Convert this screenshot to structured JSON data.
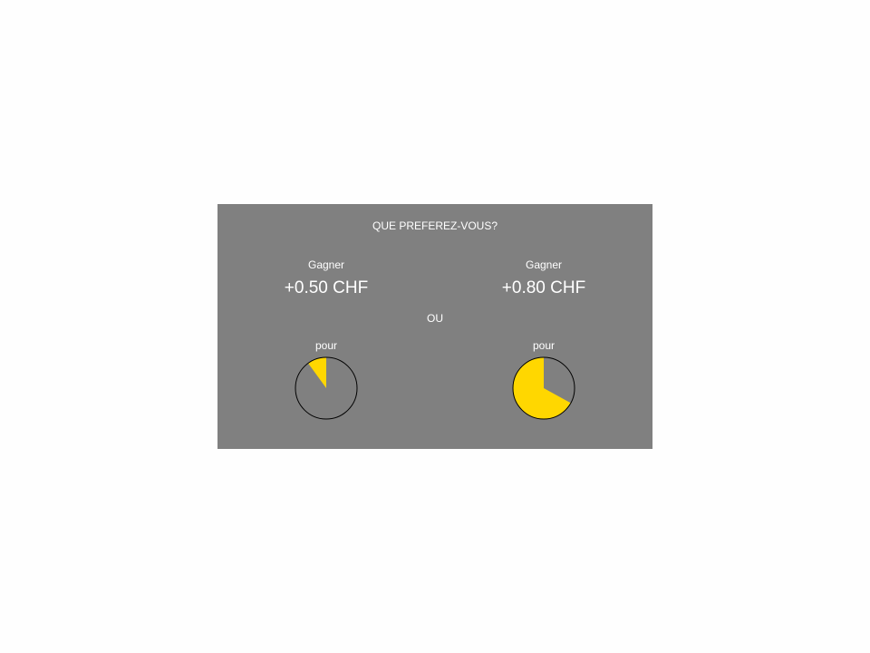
{
  "prompt": "QUE PREFEREZ-VOUS?",
  "separator": "OU",
  "colors": {
    "panel": "#808080",
    "pie_fill": "#ffd700",
    "pie_outline": "#000000",
    "text": "#ffffff"
  },
  "options": [
    {
      "gain_label": "Gagner",
      "amount": "+0.50 CHF",
      "for_label": "pour",
      "pie_fraction": 0.1
    },
    {
      "gain_label": "Gagner",
      "amount": "+0.80 CHF",
      "for_label": "pour",
      "pie_fraction": 0.67
    }
  ]
}
